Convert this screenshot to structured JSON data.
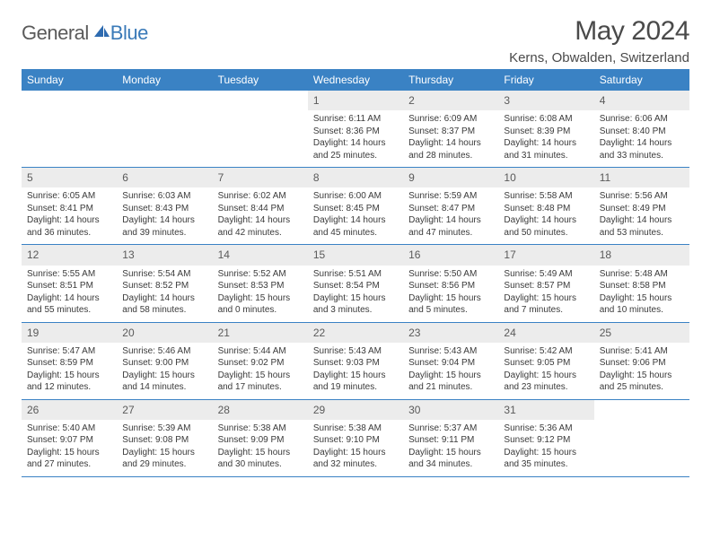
{
  "logo": {
    "general": "General",
    "blue": "Blue"
  },
  "title": "May 2024",
  "location": "Kerns, Obwalden, Switzerland",
  "colors": {
    "header_bg": "#3a82c4",
    "header_text": "#ffffff",
    "daynum_bg": "#ececec",
    "border": "#3a82c4",
    "body_text": "#3a3a3a",
    "title_text": "#4a4a4a",
    "logo_gray": "#5a5a5a",
    "logo_blue": "#3a7ab8"
  },
  "weekdays": [
    "Sunday",
    "Monday",
    "Tuesday",
    "Wednesday",
    "Thursday",
    "Friday",
    "Saturday"
  ],
  "weeks": [
    [
      {
        "day": "",
        "sunrise": "",
        "sunset": "",
        "daylight1": "",
        "daylight2": ""
      },
      {
        "day": "",
        "sunrise": "",
        "sunset": "",
        "daylight1": "",
        "daylight2": ""
      },
      {
        "day": "",
        "sunrise": "",
        "sunset": "",
        "daylight1": "",
        "daylight2": ""
      },
      {
        "day": "1",
        "sunrise": "Sunrise: 6:11 AM",
        "sunset": "Sunset: 8:36 PM",
        "daylight1": "Daylight: 14 hours",
        "daylight2": "and 25 minutes."
      },
      {
        "day": "2",
        "sunrise": "Sunrise: 6:09 AM",
        "sunset": "Sunset: 8:37 PM",
        "daylight1": "Daylight: 14 hours",
        "daylight2": "and 28 minutes."
      },
      {
        "day": "3",
        "sunrise": "Sunrise: 6:08 AM",
        "sunset": "Sunset: 8:39 PM",
        "daylight1": "Daylight: 14 hours",
        "daylight2": "and 31 minutes."
      },
      {
        "day": "4",
        "sunrise": "Sunrise: 6:06 AM",
        "sunset": "Sunset: 8:40 PM",
        "daylight1": "Daylight: 14 hours",
        "daylight2": "and 33 minutes."
      }
    ],
    [
      {
        "day": "5",
        "sunrise": "Sunrise: 6:05 AM",
        "sunset": "Sunset: 8:41 PM",
        "daylight1": "Daylight: 14 hours",
        "daylight2": "and 36 minutes."
      },
      {
        "day": "6",
        "sunrise": "Sunrise: 6:03 AM",
        "sunset": "Sunset: 8:43 PM",
        "daylight1": "Daylight: 14 hours",
        "daylight2": "and 39 minutes."
      },
      {
        "day": "7",
        "sunrise": "Sunrise: 6:02 AM",
        "sunset": "Sunset: 8:44 PM",
        "daylight1": "Daylight: 14 hours",
        "daylight2": "and 42 minutes."
      },
      {
        "day": "8",
        "sunrise": "Sunrise: 6:00 AM",
        "sunset": "Sunset: 8:45 PM",
        "daylight1": "Daylight: 14 hours",
        "daylight2": "and 45 minutes."
      },
      {
        "day": "9",
        "sunrise": "Sunrise: 5:59 AM",
        "sunset": "Sunset: 8:47 PM",
        "daylight1": "Daylight: 14 hours",
        "daylight2": "and 47 minutes."
      },
      {
        "day": "10",
        "sunrise": "Sunrise: 5:58 AM",
        "sunset": "Sunset: 8:48 PM",
        "daylight1": "Daylight: 14 hours",
        "daylight2": "and 50 minutes."
      },
      {
        "day": "11",
        "sunrise": "Sunrise: 5:56 AM",
        "sunset": "Sunset: 8:49 PM",
        "daylight1": "Daylight: 14 hours",
        "daylight2": "and 53 minutes."
      }
    ],
    [
      {
        "day": "12",
        "sunrise": "Sunrise: 5:55 AM",
        "sunset": "Sunset: 8:51 PM",
        "daylight1": "Daylight: 14 hours",
        "daylight2": "and 55 minutes."
      },
      {
        "day": "13",
        "sunrise": "Sunrise: 5:54 AM",
        "sunset": "Sunset: 8:52 PM",
        "daylight1": "Daylight: 14 hours",
        "daylight2": "and 58 minutes."
      },
      {
        "day": "14",
        "sunrise": "Sunrise: 5:52 AM",
        "sunset": "Sunset: 8:53 PM",
        "daylight1": "Daylight: 15 hours",
        "daylight2": "and 0 minutes."
      },
      {
        "day": "15",
        "sunrise": "Sunrise: 5:51 AM",
        "sunset": "Sunset: 8:54 PM",
        "daylight1": "Daylight: 15 hours",
        "daylight2": "and 3 minutes."
      },
      {
        "day": "16",
        "sunrise": "Sunrise: 5:50 AM",
        "sunset": "Sunset: 8:56 PM",
        "daylight1": "Daylight: 15 hours",
        "daylight2": "and 5 minutes."
      },
      {
        "day": "17",
        "sunrise": "Sunrise: 5:49 AM",
        "sunset": "Sunset: 8:57 PM",
        "daylight1": "Daylight: 15 hours",
        "daylight2": "and 7 minutes."
      },
      {
        "day": "18",
        "sunrise": "Sunrise: 5:48 AM",
        "sunset": "Sunset: 8:58 PM",
        "daylight1": "Daylight: 15 hours",
        "daylight2": "and 10 minutes."
      }
    ],
    [
      {
        "day": "19",
        "sunrise": "Sunrise: 5:47 AM",
        "sunset": "Sunset: 8:59 PM",
        "daylight1": "Daylight: 15 hours",
        "daylight2": "and 12 minutes."
      },
      {
        "day": "20",
        "sunrise": "Sunrise: 5:46 AM",
        "sunset": "Sunset: 9:00 PM",
        "daylight1": "Daylight: 15 hours",
        "daylight2": "and 14 minutes."
      },
      {
        "day": "21",
        "sunrise": "Sunrise: 5:44 AM",
        "sunset": "Sunset: 9:02 PM",
        "daylight1": "Daylight: 15 hours",
        "daylight2": "and 17 minutes."
      },
      {
        "day": "22",
        "sunrise": "Sunrise: 5:43 AM",
        "sunset": "Sunset: 9:03 PM",
        "daylight1": "Daylight: 15 hours",
        "daylight2": "and 19 minutes."
      },
      {
        "day": "23",
        "sunrise": "Sunrise: 5:43 AM",
        "sunset": "Sunset: 9:04 PM",
        "daylight1": "Daylight: 15 hours",
        "daylight2": "and 21 minutes."
      },
      {
        "day": "24",
        "sunrise": "Sunrise: 5:42 AM",
        "sunset": "Sunset: 9:05 PM",
        "daylight1": "Daylight: 15 hours",
        "daylight2": "and 23 minutes."
      },
      {
        "day": "25",
        "sunrise": "Sunrise: 5:41 AM",
        "sunset": "Sunset: 9:06 PM",
        "daylight1": "Daylight: 15 hours",
        "daylight2": "and 25 minutes."
      }
    ],
    [
      {
        "day": "26",
        "sunrise": "Sunrise: 5:40 AM",
        "sunset": "Sunset: 9:07 PM",
        "daylight1": "Daylight: 15 hours",
        "daylight2": "and 27 minutes."
      },
      {
        "day": "27",
        "sunrise": "Sunrise: 5:39 AM",
        "sunset": "Sunset: 9:08 PM",
        "daylight1": "Daylight: 15 hours",
        "daylight2": "and 29 minutes."
      },
      {
        "day": "28",
        "sunrise": "Sunrise: 5:38 AM",
        "sunset": "Sunset: 9:09 PM",
        "daylight1": "Daylight: 15 hours",
        "daylight2": "and 30 minutes."
      },
      {
        "day": "29",
        "sunrise": "Sunrise: 5:38 AM",
        "sunset": "Sunset: 9:10 PM",
        "daylight1": "Daylight: 15 hours",
        "daylight2": "and 32 minutes."
      },
      {
        "day": "30",
        "sunrise": "Sunrise: 5:37 AM",
        "sunset": "Sunset: 9:11 PM",
        "daylight1": "Daylight: 15 hours",
        "daylight2": "and 34 minutes."
      },
      {
        "day": "31",
        "sunrise": "Sunrise: 5:36 AM",
        "sunset": "Sunset: 9:12 PM",
        "daylight1": "Daylight: 15 hours",
        "daylight2": "and 35 minutes."
      },
      {
        "day": "",
        "sunrise": "",
        "sunset": "",
        "daylight1": "",
        "daylight2": ""
      }
    ]
  ]
}
